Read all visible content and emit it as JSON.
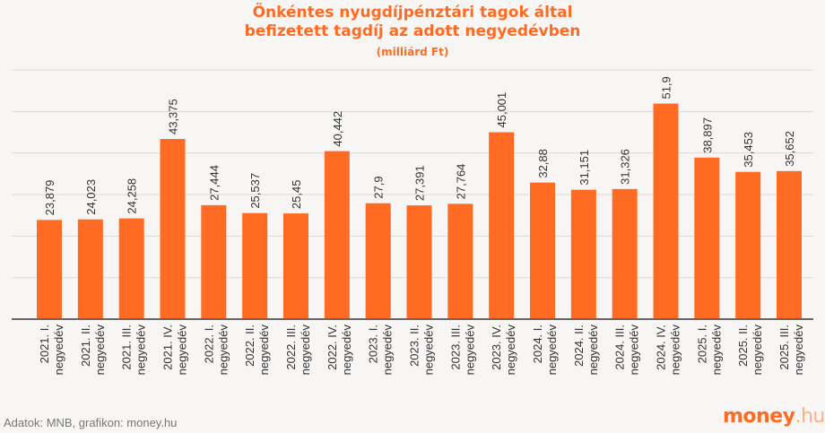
{
  "chart_data": {
    "type": "bar",
    "title_line1": "Önkéntes nyugdíjpénztári tagok által",
    "title_line2": "befizetett tagdíj az adott negyedévben",
    "subtitle": "(milliárd Ft)",
    "categories": [
      [
        "2021. I.",
        "negyedév"
      ],
      [
        "2021. II.",
        "negyedév"
      ],
      [
        "2021. III.",
        "negyedév"
      ],
      [
        "2021. IV.",
        "negyedév"
      ],
      [
        "2022. I.",
        "negyedév"
      ],
      [
        "2022. II.",
        "negyedév"
      ],
      [
        "2022. III.",
        "negyedév"
      ],
      [
        "2022. IV.",
        "negyedév"
      ],
      [
        "2023. I.",
        "negyedév"
      ],
      [
        "2023. II.",
        "negyedév"
      ],
      [
        "2023. III.",
        "negyedév"
      ],
      [
        "2023. IV.",
        "negyedév"
      ],
      [
        "2024. I.",
        "negyedév"
      ],
      [
        "2024. II.",
        "negyedév"
      ],
      [
        "2024. III.",
        "negyedév"
      ],
      [
        "2024. IV.",
        "negyedév"
      ],
      [
        "2025. I.",
        "negyedév"
      ],
      [
        "2025. II.",
        "negyedév"
      ],
      [
        "2025. III.",
        "negyedév"
      ]
    ],
    "values": [
      23.879,
      24.023,
      24.258,
      43.375,
      27.444,
      25.537,
      25.45,
      40.442,
      27.9,
      27.391,
      27.764,
      45.001,
      32.88,
      31.151,
      31.326,
      51.9,
      38.897,
      35.453,
      35.652
    ],
    "data_labels": [
      "23,879",
      "24,023",
      "24,258",
      "43,375",
      "27,444",
      "25,537",
      "25,45",
      "40,442",
      "27,9",
      "27,391",
      "27,764",
      "45,001",
      "32,88",
      "31,151",
      "31,326",
      "51,9",
      "38,897",
      "35,453",
      "35,652"
    ],
    "xlabel": "",
    "ylabel": "",
    "ylim": [
      0,
      60
    ],
    "grid": true,
    "y_axis_labels_shown": false,
    "bar_color": "#ff6b22"
  },
  "footer": {
    "source": "Adatok: MNB, grafikon: money.hu",
    "logo_main": "money",
    "logo_tld": ".hu"
  }
}
